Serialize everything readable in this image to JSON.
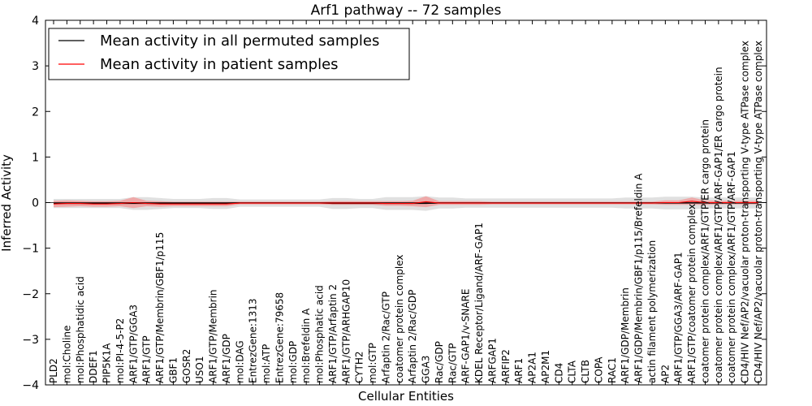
{
  "chart_data": {
    "type": "line",
    "title": "Arf1 pathway -- 72 samples",
    "xlabel": "Cellular Entities",
    "ylabel": "Inferred Activity",
    "ylim": [
      -4,
      4
    ],
    "yticks": [
      "4",
      "3",
      "2",
      "1",
      "0",
      "−1",
      "−2",
      "−3",
      "−4"
    ],
    "legend_position": "top-left",
    "colors": {
      "permuted": "#000000",
      "patient": "#ff0000",
      "permuted_band": "#bbbbbb",
      "patient_band": "#ff6666"
    },
    "categories": [
      "PLD2",
      "mol:Choline",
      "mol:Phosphatidic acid",
      "DDEF1",
      "PIP5K1A",
      "mol:PI-4-5-P2",
      "ARF1/GTP/GGA3",
      "ARF1/GTP",
      "ARF1/GTP/Membrin/GBF1/p115",
      "GBF1",
      "GOSR2",
      "USO1",
      "ARF1/GTP/Membrin",
      "ARF1/GDP",
      "mol:DAG",
      "EntrezGene:1313",
      "mol:ATP",
      "EntrezGene:79658",
      "mol:GDP",
      "mol:Brefeldin A",
      "mol:Phosphatic acid",
      "ARF1/GTP/Arfaptin 2",
      "ARF1/GTP/ARHGAP10",
      "CYTH2",
      "mol:GTP",
      "Arfaptin 2/Rac/GTP",
      "coatomer protein complex",
      "Arfaptin 2/Rac/GDP",
      "GGA3",
      "Rac/GDP",
      "Rac/GTP",
      "ARF-GAP1/v-SNARE",
      "KDEL Receptor/Ligand/ARF-GAP1",
      "ARFGAP1",
      "ARFIP2",
      "ARF1",
      "AP2A1",
      "AP2M1",
      "CD4",
      "CLTA",
      "CLTB",
      "COPA",
      "RAC1",
      "ARF1/GDP/Membrin",
      "ARF1/GDP/Membrin/GBF1/p115/Brefeldin A",
      "actin filament polymerization",
      "AP2",
      "ARF1/GTP/GGA3/ARF-GAP1",
      "ARF1/GTP/coatomer protein complex",
      "coatomer protein complex/ARF1/GTP/ER cargo protein",
      "coatomer protein complex/ARF1/GTP/ARF-GAP1/ER cargo protein",
      "coatomer protein complex/ARF1/GTP/ARF-GAP1",
      "CD4/HIV Nef/AP2/vacuolar proton-transporting V-type ATPase complex",
      "CD4/HIV Nef/AP2/vacuolar proton-transporting V-type ATPase complex"
    ],
    "series": [
      {
        "name": "Mean activity in all permuted samples",
        "values": [
          -0.02,
          -0.02,
          -0.02,
          -0.02,
          -0.02,
          -0.02,
          -0.02,
          -0.02,
          -0.02,
          -0.02,
          -0.02,
          -0.02,
          -0.02,
          -0.02,
          -0.01,
          -0.01,
          -0.01,
          -0.01,
          -0.01,
          -0.01,
          -0.01,
          -0.02,
          -0.02,
          -0.02,
          -0.02,
          -0.02,
          -0.02,
          -0.02,
          -0.02,
          -0.01,
          -0.01,
          -0.01,
          -0.01,
          -0.01,
          -0.01,
          -0.01,
          -0.01,
          -0.01,
          -0.01,
          -0.01,
          -0.01,
          -0.01,
          -0.01,
          -0.01,
          -0.01,
          -0.01,
          -0.01,
          -0.01,
          -0.01,
          -0.01,
          -0.01,
          -0.01,
          -0.01,
          -0.01
        ],
        "spread": [
          0.1,
          0.1,
          0.1,
          0.1,
          0.1,
          0.1,
          0.14,
          0.14,
          0.12,
          0.1,
          0.1,
          0.1,
          0.12,
          0.12,
          0.08,
          0.08,
          0.08,
          0.08,
          0.08,
          0.08,
          0.08,
          0.12,
          0.12,
          0.1,
          0.1,
          0.14,
          0.14,
          0.14,
          0.16,
          0.12,
          0.12,
          0.1,
          0.1,
          0.1,
          0.1,
          0.1,
          0.1,
          0.1,
          0.1,
          0.1,
          0.1,
          0.1,
          0.1,
          0.12,
          0.12,
          0.12,
          0.14,
          0.14,
          0.14,
          0.12,
          0.12,
          0.12,
          0.12,
          0.12
        ]
      },
      {
        "name": "Mean activity in patient samples",
        "values": [
          -0.03,
          -0.02,
          -0.02,
          -0.03,
          -0.03,
          -0.02,
          0.0,
          -0.02,
          -0.03,
          -0.03,
          -0.03,
          -0.03,
          -0.03,
          -0.03,
          -0.01,
          -0.01,
          -0.01,
          -0.01,
          -0.01,
          -0.01,
          -0.01,
          -0.01,
          -0.01,
          -0.01,
          -0.01,
          -0.02,
          -0.02,
          -0.02,
          0.02,
          -0.01,
          -0.01,
          -0.01,
          -0.01,
          -0.01,
          -0.01,
          -0.01,
          -0.01,
          -0.01,
          -0.01,
          -0.01,
          -0.01,
          -0.01,
          -0.01,
          -0.01,
          -0.01,
          -0.01,
          0.0,
          0.0,
          0.03,
          0.0,
          0.0,
          0.0,
          0.0,
          0.0
        ],
        "spread": [
          0.07,
          0.07,
          0.06,
          0.06,
          0.06,
          0.06,
          0.12,
          0.06,
          0.06,
          0.05,
          0.05,
          0.05,
          0.05,
          0.05,
          0.03,
          0.03,
          0.03,
          0.03,
          0.03,
          0.03,
          0.03,
          0.04,
          0.04,
          0.04,
          0.04,
          0.05,
          0.05,
          0.06,
          0.12,
          0.04,
          0.04,
          0.04,
          0.04,
          0.03,
          0.03,
          0.03,
          0.03,
          0.03,
          0.03,
          0.03,
          0.03,
          0.03,
          0.03,
          0.03,
          0.03,
          0.03,
          0.05,
          0.05,
          0.08,
          0.05,
          0.04,
          0.04,
          0.04,
          0.04
        ]
      }
    ]
  }
}
